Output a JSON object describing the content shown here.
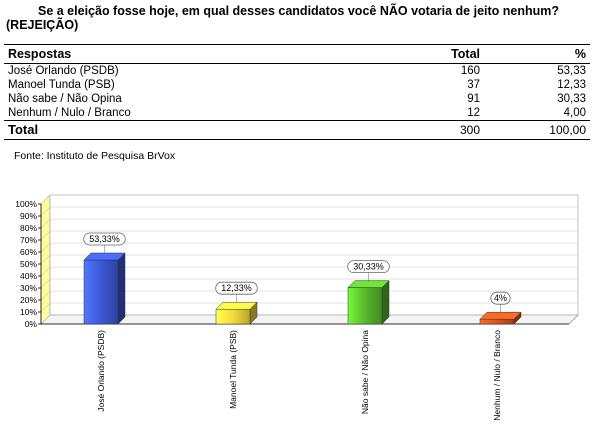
{
  "title": "Se a eleição fosse hoje, em qual desses candidatos você NÃO votaria de jeito nenhum? (REJEIÇÃO)",
  "table": {
    "headers": [
      "Respostas",
      "Total",
      "%"
    ],
    "rows": [
      {
        "label": "José Orlando (PSDB)",
        "total": "160",
        "pct": "53,33"
      },
      {
        "label": "Manoel Tunda (PSB)",
        "total": "37",
        "pct": "12,33"
      },
      {
        "label": "Não sabe / Não Opina",
        "total": "91",
        "pct": "30,33"
      },
      {
        "label": "Nenhum / Nulo / Branco",
        "total": "12",
        "pct": "4,00"
      }
    ],
    "total_row": {
      "label": "Total",
      "total": "300",
      "pct": "100,00"
    }
  },
  "source": "Fonte: Instituto de Pesquisa BrVox",
  "chart_data": {
    "type": "bar",
    "categories": [
      "José Orlando (PSDB)",
      "Manoel Tunda (PSB)",
      "Não sabe / Não Opina",
      "Nenhum / Nulo / Branco"
    ],
    "values": [
      53.33,
      12.33,
      30.33,
      4
    ],
    "data_labels": [
      "53,33%",
      "12,33%",
      "30,33%",
      "4%"
    ],
    "colors": [
      "#3c58d6",
      "#f2dc3c",
      "#58b82a",
      "#d8541c"
    ],
    "ylim": [
      0,
      100
    ],
    "yticks": [
      0,
      10,
      20,
      30,
      40,
      50,
      60,
      70,
      80,
      90,
      100
    ],
    "ytick_labels": [
      "0%",
      "10%",
      "20%",
      "30%",
      "40%",
      "50%",
      "60%",
      "70%",
      "80%",
      "90%",
      "100%"
    ],
    "grid": true,
    "legend": "none"
  }
}
